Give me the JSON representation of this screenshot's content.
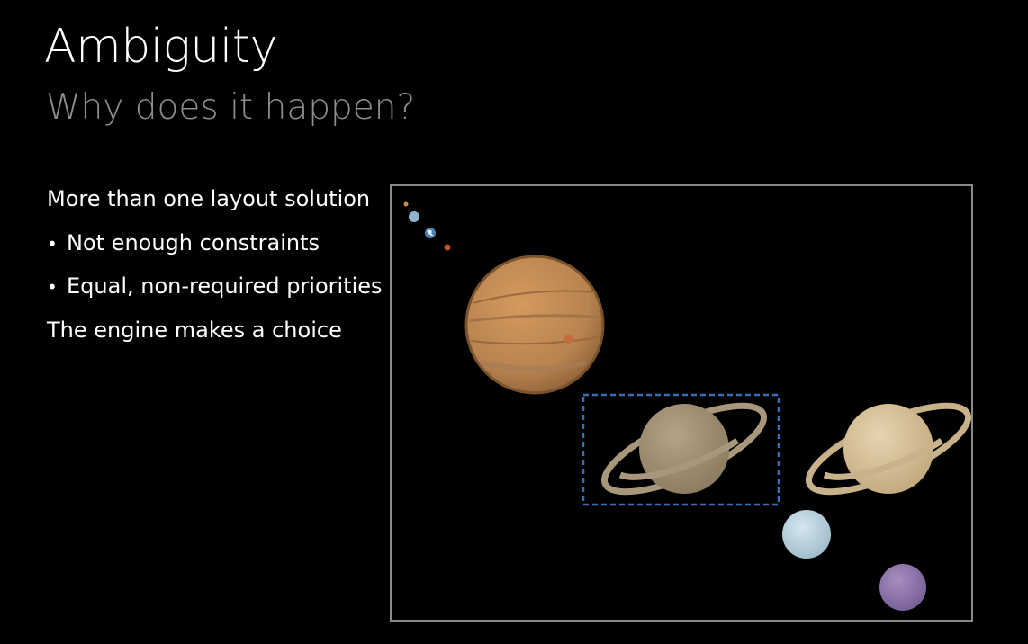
{
  "slide": {
    "title": "Ambiguity",
    "subtitle": "Why does it happen?",
    "intro": "More than one layout solution",
    "bullets": [
      "Not enough constraints",
      "Equal, non-required priorities"
    ],
    "conclusion": "The engine makes a choice"
  },
  "diagram": {
    "planets": [
      "mercury-icon",
      "venus-icon",
      "earth-icon",
      "mars-icon",
      "jupiter-icon",
      "saturn-icon",
      "saturn-icon",
      "uranus-icon",
      "neptune-icon"
    ],
    "colors": {
      "border": "#8a8a8a",
      "selection": "#3a6fb8",
      "jupiter": "#b8834f",
      "saturn": "#c7b08a",
      "uranus": "#b9d3df",
      "neptune": "#8e75ab",
      "mars": "#c0502f"
    }
  }
}
